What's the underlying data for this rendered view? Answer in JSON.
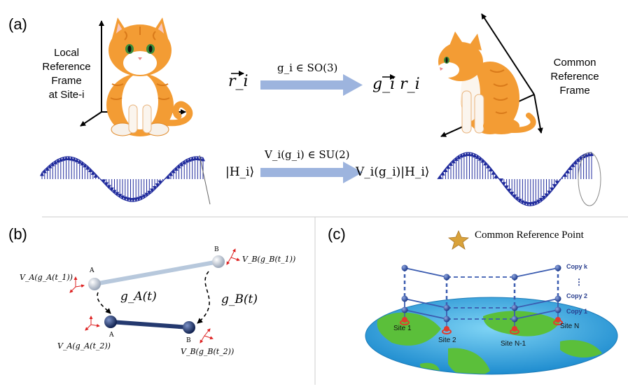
{
  "panels": {
    "a": "(a)",
    "b": "(b)",
    "c": "(c)"
  },
  "panel_a": {
    "local_frame_lines": [
      "Local",
      "Reference",
      "Frame",
      "at Site-i"
    ],
    "common_frame_lines": [
      "Common",
      "Reference",
      "Frame"
    ],
    "rotation_label": "g_i ∈ SO(3)",
    "vector_left": "r_i",
    "vector_right": "g_i r_i",
    "spinor_label": "V_i(g_i) ∈ SU(2)",
    "state_left": "|H_i⟩",
    "state_right": "V_i(g_i)|H_i⟩"
  },
  "panel_b": {
    "node_a_top": "A",
    "node_b_top": "B",
    "node_a_bottom": "A",
    "node_b_bottom": "B",
    "label_va_t1": "V_A(g_A(t_1))",
    "label_vb_t1": "V_B(g_B(t_1))",
    "label_va_t2": "V_A(g_A(t_2))",
    "label_vb_t2": "V_B(g_B(t_2))",
    "label_ga": "g_A(t)",
    "label_gb": "g_B(t)"
  },
  "panel_c": {
    "legend": "Common Reference Point",
    "copies": [
      "Copy k",
      "Copy 2",
      "Copy 1"
    ],
    "sites": [
      "Site 1",
      "Site 2",
      "Site N-1",
      "Site N"
    ],
    "colors": {
      "lattice": "#3b5cb0",
      "node": "#2b4ea8",
      "earth_ocean": "#29a9e1",
      "earth_land": "#5bbf3a",
      "pin": "#e23b2e",
      "star": "#d9a23a"
    }
  },
  "colors": {
    "arrow": "#9db4de",
    "spin": "#1f2a9c",
    "cat_orange": "#f39c34",
    "divider": "#cccccc"
  }
}
